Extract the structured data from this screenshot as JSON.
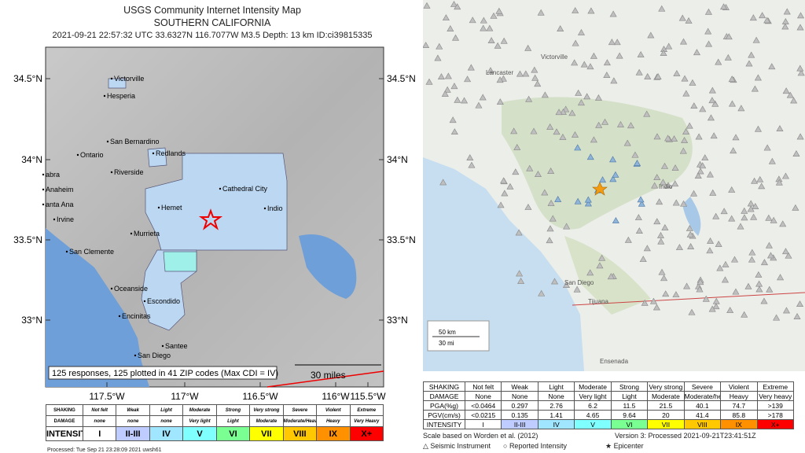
{
  "left": {
    "title": "USGS Community Internet Intensity Map",
    "subtitle": "SOUTHERN CALIFORNIA",
    "event": "2021-09-21 22:57:32 UTC 33.6327N 116.7077W M3.5 Depth: 13 km ID:ci39815335",
    "lat_labels": [
      "34.5°N",
      "34°N",
      "33.5°N",
      "33°N"
    ],
    "lon_labels": [
      "117.5°W",
      "117°W",
      "116.5°W",
      "116°W",
      "115.5°W"
    ],
    "places": [
      "Victorville",
      "Hesperia",
      "San Bernardino",
      "Ontario",
      "Redlands",
      "Riverside",
      "abra",
      "Anaheim",
      "anta Ana",
      "Irvine",
      "Hemet",
      "Murrieta",
      "Cathedral City",
      "Indio",
      "San Clemente",
      "Oceanside",
      "Escondido",
      "Encinitas",
      "Santee",
      "San Diego"
    ],
    "responses": "125 responses, 125 plotted in 41 ZIP codes (Max CDI = IV)",
    "scale": "30 miles",
    "legend": [
      [
        "SHAKING",
        "Not felt",
        "Weak",
        "Light",
        "Moderate",
        "Strong",
        "Very strong",
        "Severe",
        "Violent",
        "Extreme"
      ],
      [
        "DAMAGE",
        "none",
        "none",
        "none",
        "Very light",
        "Light",
        "Moderate",
        "Moderate/Heavy",
        "Heavy",
        "Very Heavy"
      ],
      [
        "INTENSITY",
        "I",
        "II-III",
        "IV",
        "V",
        "VI",
        "VII",
        "VIII",
        "IX",
        "X+"
      ]
    ],
    "processed": "Processed: Tue Sep 21 23:28:09 2021 uwsh61"
  },
  "right": {
    "places": [
      "Lancaster",
      "Victorville",
      "Indio",
      "San Diego",
      "Tijuana",
      "Ensenada"
    ],
    "scale_km": "50 km",
    "scale_mi": "30 mi",
    "legend": [
      [
        "SHAKING",
        "Not felt",
        "Weak",
        "Light",
        "Moderate",
        "Strong",
        "Very strong",
        "Severe",
        "Violent",
        "Extreme"
      ],
      [
        "DAMAGE",
        "None",
        "None",
        "None",
        "Very light",
        "Light",
        "Moderate",
        "Moderate/heavy",
        "Heavy",
        "Very heavy"
      ],
      [
        "PGA(%g)",
        "<0.0464",
        "0.297",
        "2.76",
        "6.2",
        "11.5",
        "21.5",
        "40.1",
        "74.7",
        ">139"
      ],
      [
        "PGV(cm/s)",
        "<0.0215",
        "0.135",
        "1.41",
        "4.65",
        "9.64",
        "20",
        "41.4",
        "85.8",
        ">178"
      ],
      [
        "INTENSITY",
        "I",
        "II-III",
        "IV",
        "V",
        "VI",
        "VII",
        "VIII",
        "IX",
        "X+"
      ]
    ],
    "scale_note": "Scale based on Worden et al. (2012)",
    "version": "Version 3: Processed 2021-09-21T23:41:51Z",
    "key": [
      "Seismic Instrument",
      "Reported Intensity",
      "Epicenter"
    ]
  }
}
